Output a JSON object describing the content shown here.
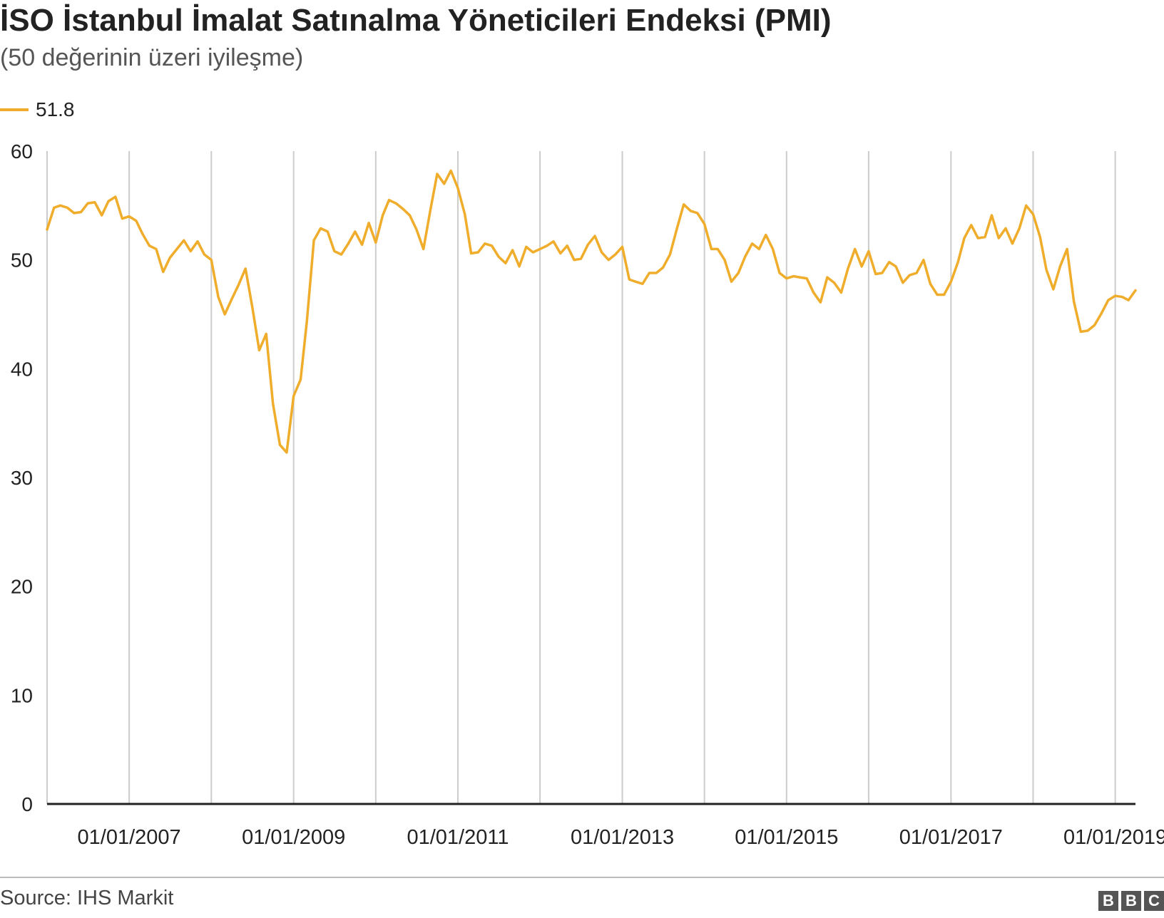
{
  "title": "İSO İstanbul İmalat Satınalma Yöneticileri Endeksi (PMI)",
  "subtitle": "(50 değerinin üzeri iyileşme)",
  "source": "Source: IHS Markit",
  "logo": [
    "B",
    "B",
    "C"
  ],
  "colors": {
    "line": "#f0ac2b",
    "grid": "#cccccc",
    "axis": "#222222"
  },
  "chart_data": {
    "type": "line",
    "title": "İSO İstanbul İmalat Satınalma Yöneticileri Endeksi (PMI)",
    "subtitle": "(50 değerinin üzeri iyileşme)",
    "legend_position": "top-left",
    "grid": true,
    "ylim": [
      0,
      60
    ],
    "yticks": [
      0,
      10,
      20,
      30,
      40,
      50,
      60
    ],
    "xlim": [
      "2006-01-01",
      "2019-04-01"
    ],
    "xticks": [
      "2007-01-01",
      "2009-01-01",
      "2011-01-01",
      "2013-01-01",
      "2015-01-01",
      "2017-01-01",
      "2019-01-01"
    ],
    "xtick_labels": [
      "01/01/2007",
      "01/01/2009",
      "01/01/2011",
      "01/01/2013",
      "01/01/2015",
      "01/01/2017",
      "01/01/2019"
    ],
    "vertical_gridlines": [
      "2006-01-01",
      "2007-01-01",
      "2008-01-01",
      "2009-01-01",
      "2010-01-01",
      "2011-01-01",
      "2012-01-01",
      "2013-01-01",
      "2014-01-01",
      "2015-01-01",
      "2016-01-01",
      "2017-01-01",
      "2018-01-01",
      "2019-01-01"
    ],
    "series": [
      {
        "name": "51.8",
        "x_start": "2006-01",
        "frequency": "monthly",
        "values": [
          52.8,
          54.8,
          55.0,
          54.8,
          54.3,
          54.4,
          55.2,
          55.3,
          54.1,
          55.4,
          55.8,
          53.8,
          54.0,
          53.6,
          52.4,
          51.3,
          51.0,
          48.9,
          50.2,
          51.0,
          51.8,
          50.8,
          51.7,
          50.5,
          50.0,
          46.6,
          45.0,
          46.4,
          47.7,
          49.2,
          45.7,
          41.7,
          43.2,
          36.8,
          33.0,
          32.3,
          37.5,
          39.0,
          44.4,
          51.8,
          52.9,
          52.6,
          50.8,
          50.5,
          51.5,
          52.6,
          51.4,
          53.4,
          51.6,
          54.1,
          55.5,
          55.2,
          54.7,
          54.1,
          52.8,
          51.0,
          54.6,
          57.9,
          57.0,
          58.2,
          56.6,
          54.2,
          50.6,
          50.7,
          51.5,
          51.3,
          50.3,
          49.7,
          50.9,
          49.4,
          51.2,
          50.7,
          51.0,
          51.3,
          51.7,
          50.6,
          51.3,
          50.0,
          50.1,
          51.4,
          52.2,
          50.7,
          50.0,
          50.5,
          51.2,
          48.2,
          48.0,
          47.8,
          48.8,
          48.8,
          49.3,
          50.5,
          52.9,
          55.1,
          54.5,
          54.3,
          53.3,
          51.0,
          51.0,
          50.0,
          48.0,
          48.8,
          50.3,
          51.5,
          51.0,
          52.3,
          51.0,
          48.8,
          48.3,
          48.5,
          48.4,
          48.3,
          47.0,
          46.1,
          48.4,
          47.9,
          47.0,
          49.2,
          51.0,
          49.4,
          50.8,
          48.7,
          48.8,
          49.8,
          49.4,
          47.9,
          48.6,
          48.8,
          50.0,
          47.8,
          46.8,
          46.8,
          48.0,
          49.8,
          52.0,
          53.2,
          52.0,
          52.1,
          54.1,
          52.0,
          52.9,
          51.5,
          52.9,
          55.0,
          54.2,
          52.1,
          49.1,
          47.3,
          49.4,
          51.0,
          46.2,
          43.4,
          43.5,
          44.0,
          45.1,
          46.3,
          46.7,
          46.6,
          46.3,
          47.2
        ]
      }
    ]
  }
}
